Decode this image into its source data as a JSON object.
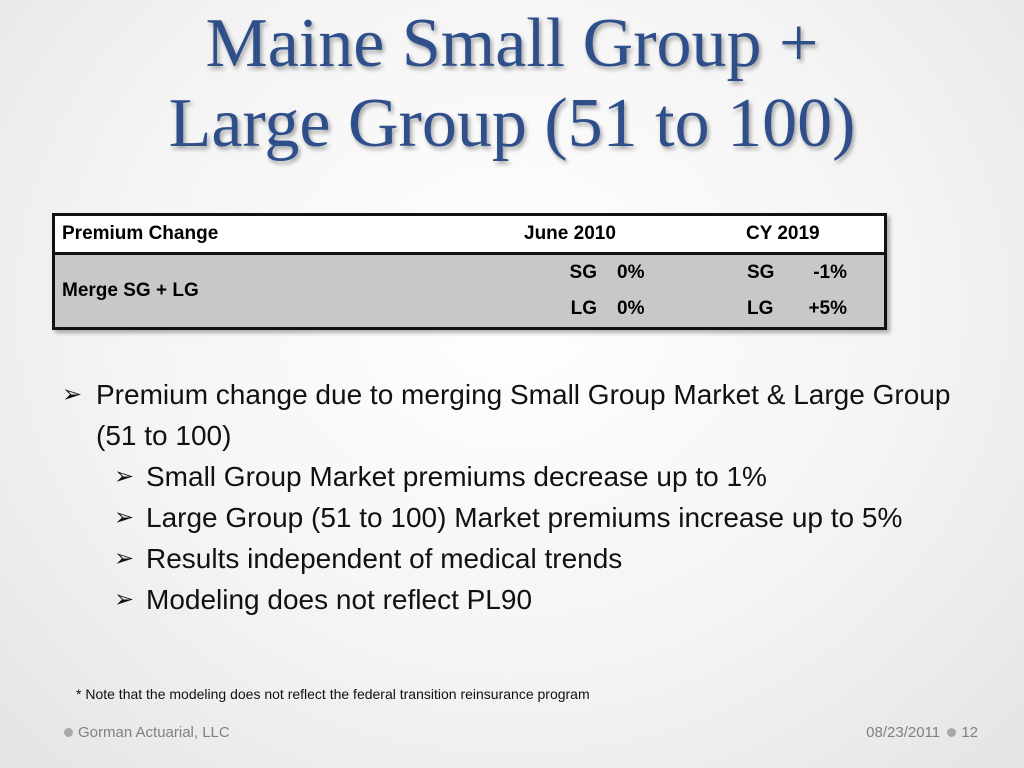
{
  "title": {
    "line1": "Maine Small Group +",
    "line2": "Large Group (51 to 100)"
  },
  "table": {
    "headers": [
      "Premium Change",
      "June 2010",
      "CY 2019"
    ],
    "row_label": "Merge SG + LG",
    "rows": [
      {
        "june_code": "SG",
        "june_value": "0%",
        "cy_code": "SG",
        "cy_value": "-1%"
      },
      {
        "june_code": "LG",
        "june_value": "0%",
        "cy_code": "LG",
        "cy_value": "+5%"
      }
    ]
  },
  "bullets": [
    {
      "level": 1,
      "text": "Premium change due to merging Small Group Market & Large Group (51 to 100)"
    },
    {
      "level": 2,
      "text": "Small Group Market premiums decrease up to 1%"
    },
    {
      "level": 2,
      "text": "Large Group (51 to 100) Market premiums increase up to 5%"
    },
    {
      "level": 2,
      "text": "Results independent of medical trends"
    },
    {
      "level": 2,
      "text": "Modeling does not reflect PL90"
    }
  ],
  "bullet_icon": "arrow-bullet-icon",
  "note": "* Note that the modeling does not reflect the federal transition reinsurance program",
  "footer": {
    "company": "Gorman Actuarial, LLC",
    "date": "08/23/2011",
    "page": "12"
  },
  "colors": {
    "title": "#2f4f8a",
    "table_fill": "#c8c8c8",
    "footer_text": "#808080"
  }
}
